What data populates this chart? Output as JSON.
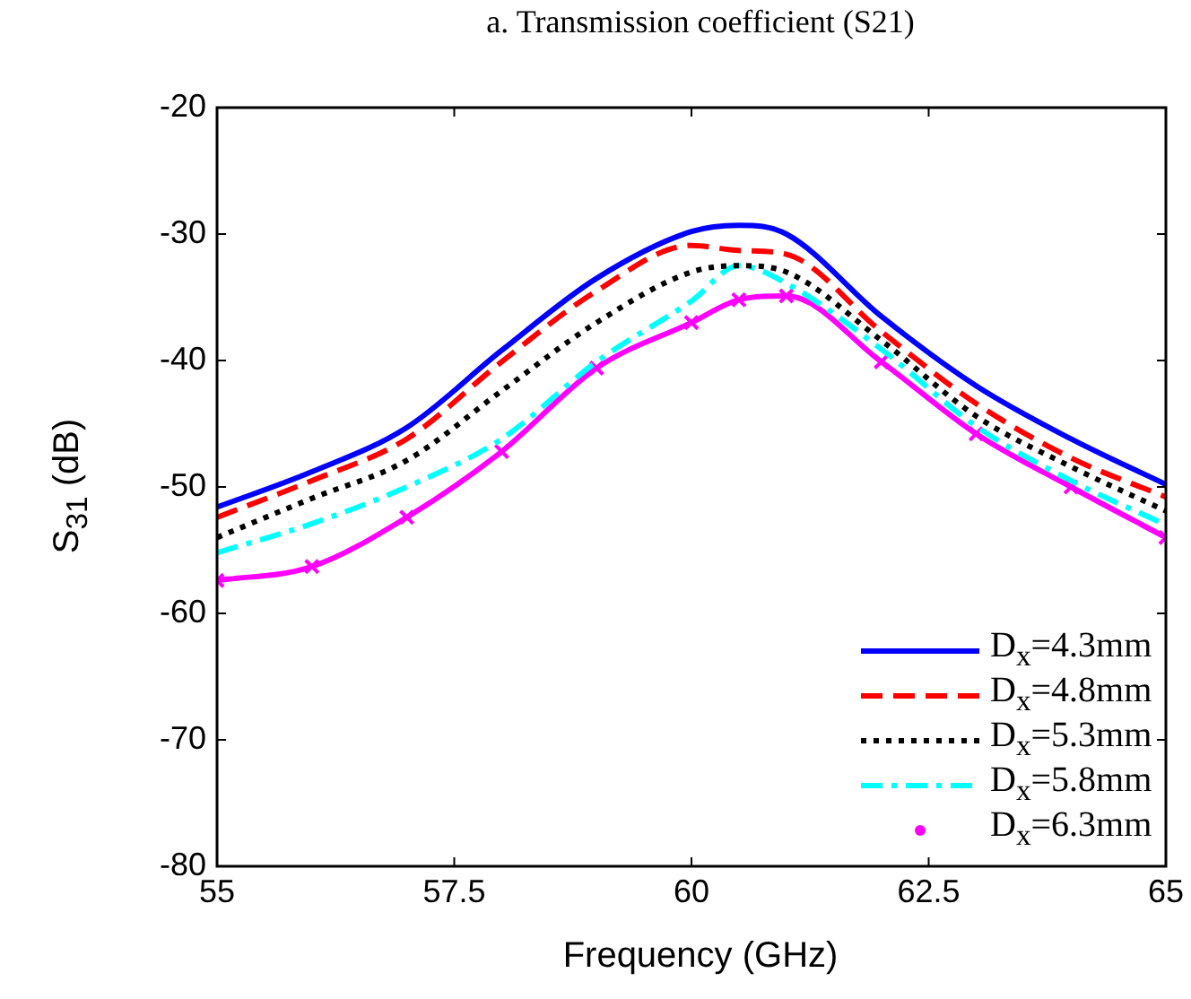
{
  "chart_data": {
    "type": "line",
    "title": "a. Transmission coefficient (S21)",
    "xlabel": "Frequency (GHz)",
    "ylabel": "S$_{31}$ (dB)",
    "x": [
      55,
      56,
      57,
      58,
      59,
      60,
      60.5,
      61,
      62,
      63,
      64,
      65
    ],
    "series": [
      {
        "name": "D$_{x}$=4.3mm",
        "color": "#0000ff",
        "line_style": "solid",
        "values": [
          -51.6,
          -48.8,
          -45.3,
          -39.2,
          -33.5,
          -29.8,
          -29.3,
          -30,
          -36.5,
          -42,
          -46.2,
          -49.8
        ]
      },
      {
        "name": "D$_{x}$=4.8mm",
        "color": "#ff0000",
        "line_style": "dashed",
        "values": [
          -52.4,
          -49.5,
          -46.2,
          -40.1,
          -34.5,
          -30.9,
          -31.3,
          -31.6,
          -37.7,
          -43.4,
          -47.7,
          -50.8
        ]
      },
      {
        "name": "D$_{x}$=5.3mm",
        "color": "#000000",
        "line_style": "dotted",
        "values": [
          -54,
          -50.9,
          -47.9,
          -42.4,
          -37,
          -33,
          -32.5,
          -33,
          -38.4,
          -44.4,
          -48.4,
          -51.9
        ]
      },
      {
        "name": "D$_{x}$=5.8mm",
        "color": "#00ffff",
        "line_style": "dashdot",
        "values": [
          -55.2,
          -52.9,
          -50,
          -46.2,
          -40.1,
          -35.3,
          -32.5,
          -33.9,
          -39.1,
          -45.2,
          -49.5,
          -53
        ]
      },
      {
        "name": "D$_{x}$=6.3mm",
        "color": "#ff00ff",
        "line_style": "solid",
        "marker": "cross",
        "values": [
          -57.4,
          -56.3,
          -52.4,
          -47.2,
          -40.6,
          -37,
          -35.2,
          -34.9,
          -40.1,
          -45.8,
          -50,
          -54
        ]
      }
    ],
    "xlim": [
      55,
      65
    ],
    "xticks": [
      55,
      57.5,
      60,
      62.5,
      65
    ],
    "ylim": [
      -80,
      -20
    ],
    "yticks": [
      -80,
      -70,
      -60,
      -50,
      -40,
      -30,
      -20
    ],
    "grid": false,
    "legend": "bottom right",
    "marker": "none"
  }
}
